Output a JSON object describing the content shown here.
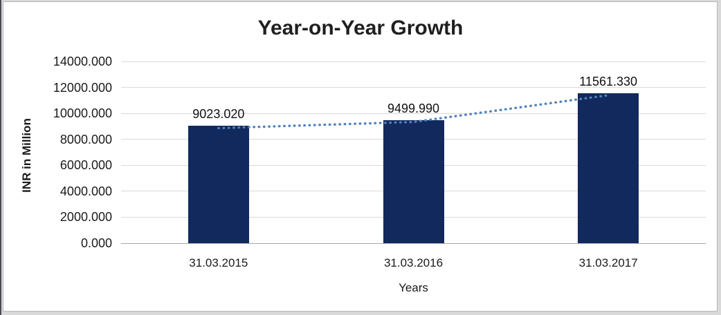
{
  "chart_data": {
    "type": "bar",
    "title": "Year-on-Year Growth",
    "xlabel": "Years",
    "ylabel": "INR in Million",
    "categories": [
      "31.03.2015",
      "31.03.2016",
      "31.03.2017"
    ],
    "series": [
      {
        "name": "INR in Million (bars)",
        "type": "bar",
        "values": [
          9023.02,
          9499.99,
          11561.33
        ]
      },
      {
        "name": "trendline",
        "type": "dotted-line",
        "values": [
          9023.02,
          9499.99,
          11561.33
        ]
      }
    ],
    "data_labels": [
      "9023.020",
      "9499.990",
      "11561.330"
    ],
    "ylim": [
      0,
      14000
    ],
    "ytick_step": 2000,
    "ytick_labels": [
      "0.000",
      "2000.000",
      "4000.000",
      "6000.000",
      "8000.000",
      "10000.000",
      "12000.000",
      "14000.000"
    ],
    "grid": true,
    "legend": "none",
    "colors": {
      "bar": "#12295d",
      "trendline": "#4f81bd",
      "gridline": "#d9d9d9",
      "axis_line": "#a6a6a6",
      "text": "#1a1a1a",
      "background": "#ffffff",
      "frame": "#d9d9d9"
    }
  }
}
